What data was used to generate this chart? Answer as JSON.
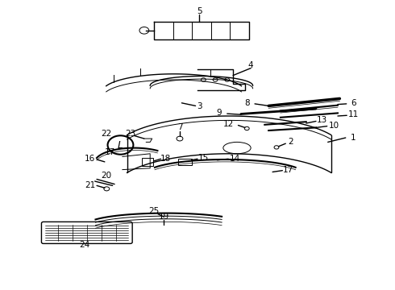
{
  "bg_color": "#ffffff",
  "fig_width": 4.9,
  "fig_height": 3.6,
  "dpi": 100,
  "line_color": "#000000",
  "label_fontsize": 7.5
}
